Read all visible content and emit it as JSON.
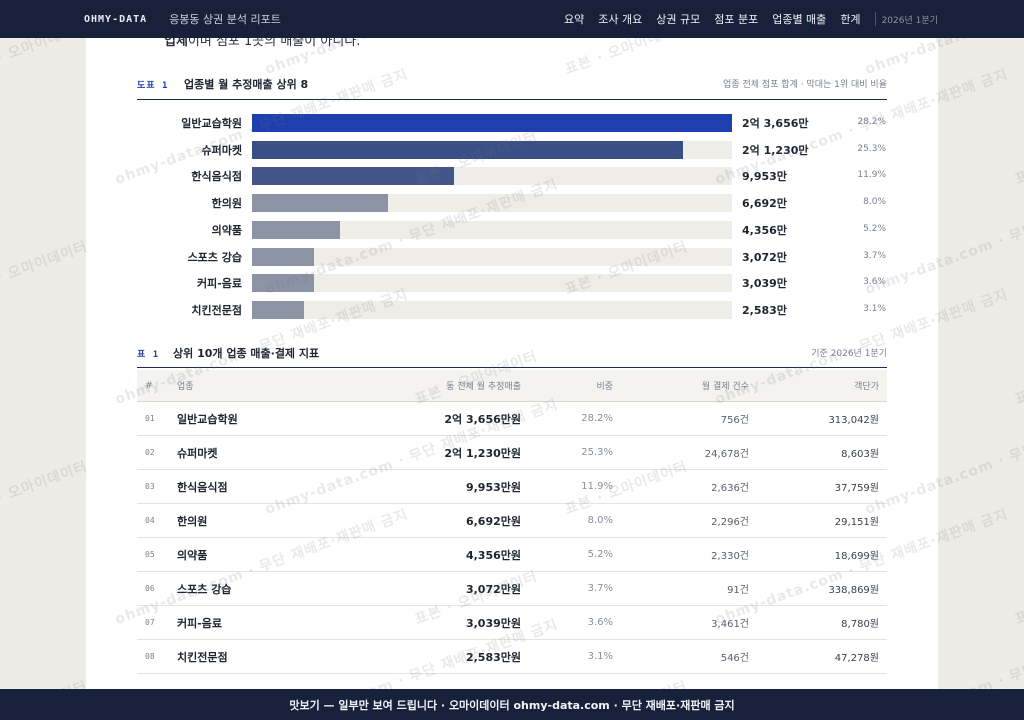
{
  "nav": {
    "brand": "OHMY-DATA",
    "report_name": "응봉동 상권 분석 리포트",
    "links": [
      "요약",
      "조사 개요",
      "상권 규모",
      "점포 분포",
      "업종별 매출",
      "한계"
    ],
    "quarter": "2026년 1분기"
  },
  "intro_cut": {
    "bold": "업체",
    "rest": "이며 점포 1곳의 매출이 아니다."
  },
  "figure": {
    "tag": "도표 1",
    "title": "업종별 월 추정매출 상위 8",
    "note": "업종 전체 점포 합계 · 막대는 1위 대비 비율"
  },
  "chart_data": {
    "type": "bar",
    "orientation": "horizontal",
    "title": "업종별 월 추정매출 상위 8",
    "categories": [
      "일반교습학원",
      "슈퍼마켓",
      "한식음식점",
      "한의원",
      "의약품",
      "스포츠 강습",
      "커피-음료",
      "치킨전문점"
    ],
    "values": [
      236560000,
      212300000,
      99530000,
      66920000,
      43560000,
      30720000,
      30390000,
      25830000
    ],
    "value_labels": [
      "2억 3,656만",
      "2억 1,230만",
      "9,953만",
      "6,692만",
      "4,356만",
      "3,072만",
      "3,039만",
      "2,583만"
    ],
    "shares": [
      "28.2%",
      "25.3%",
      "11.9%",
      "8.0%",
      "5.2%",
      "3.7%",
      "3.6%",
      "3.1%"
    ],
    "colors": [
      "#1e3fae",
      "#3a4f86",
      "#44558a",
      "#8c93a5",
      "#8c93a5",
      "#8c93a5",
      "#8c93a5",
      "#8c93a5"
    ],
    "track_color": "#efede7",
    "xlim": [
      0,
      236560000
    ]
  },
  "table": {
    "tag": "표 1",
    "title": "상위 10개 업종 매출·결제 지표",
    "note": "기준 2026년 1분기",
    "headers": {
      "no": "#",
      "name": "업종",
      "sales": "동 전체 월 추정매출",
      "share": "비중",
      "count": "월 결제 건수",
      "avg": "객단가"
    },
    "rows": [
      {
        "no": "01",
        "name": "일반교습학원",
        "sales": "2억 3,656만원",
        "share": "28.2%",
        "count": "756건",
        "avg": "313,042원"
      },
      {
        "no": "02",
        "name": "슈퍼마켓",
        "sales": "2억 1,230만원",
        "share": "25.3%",
        "count": "24,678건",
        "avg": "8,603원"
      },
      {
        "no": "03",
        "name": "한식음식점",
        "sales": "9,953만원",
        "share": "11.9%",
        "count": "2,636건",
        "avg": "37,759원"
      },
      {
        "no": "04",
        "name": "한의원",
        "sales": "6,692만원",
        "share": "8.0%",
        "count": "2,296건",
        "avg": "29,151원"
      },
      {
        "no": "05",
        "name": "의약품",
        "sales": "4,356만원",
        "share": "5.2%",
        "count": "2,330건",
        "avg": "18,699원"
      },
      {
        "no": "06",
        "name": "스포츠 강습",
        "sales": "3,072만원",
        "share": "3.7%",
        "count": "91건",
        "avg": "338,869원"
      },
      {
        "no": "07",
        "name": "커피-음료",
        "sales": "3,039만원",
        "share": "3.6%",
        "count": "3,461건",
        "avg": "8,780원"
      },
      {
        "no": "08",
        "name": "치킨전문점",
        "sales": "2,583만원",
        "share": "3.1%",
        "count": "546건",
        "avg": "47,278원"
      }
    ]
  },
  "watermark": {
    "primary": "표본 · 오마이데이터",
    "secondary": "ohmy-data.com · 무단 재배포·재판매 금지"
  },
  "banner": {
    "text": "맛보기 — 일부만 보여 드립니다 · 오마이데이터 ohmy-data.com · 무단 재배포·재판매 금지"
  }
}
